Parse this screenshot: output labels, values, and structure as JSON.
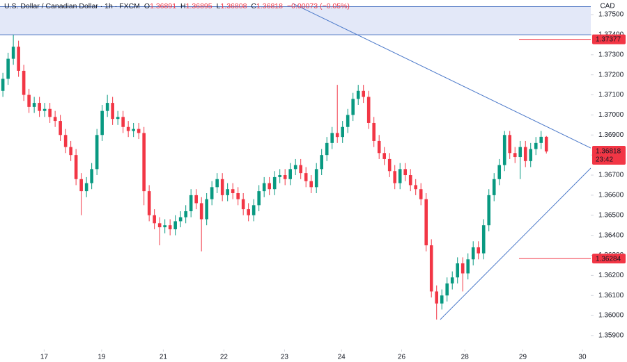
{
  "chart_data": {
    "type": "candlestick",
    "title": "U.S. Dollar / Canadian Dollar · 1h · FXCM",
    "ohlc": [
      {
        "key": "O",
        "value": 1.36891
      },
      {
        "key": "H",
        "value": 1.36895
      },
      {
        "key": "L",
        "value": 1.36808
      },
      {
        "key": "C",
        "value": 1.36818
      }
    ],
    "change": "−0.00073 (−0.05%)",
    "y_label": "CAD",
    "up_color": "#089981",
    "down_color": "#f23645",
    "open": [
      1.3712,
      1.3718,
      1.3728,
      1.3734,
      1.3722,
      1.371,
      1.3704,
      1.3706,
      1.3702,
      1.3703,
      1.3699,
      1.3697,
      1.369,
      1.3684,
      1.368,
      1.3668,
      1.3662,
      1.3666,
      1.3673,
      1.369,
      1.3702,
      1.3706,
      1.3698,
      1.3699,
      1.3694,
      1.3692,
      1.3693,
      1.3691,
      1.3662,
      1.365,
      1.3646,
      1.3644,
      1.3645,
      1.3643,
      1.3647,
      1.3649,
      1.3652,
      1.366,
      1.3656,
      1.3648,
      1.3658,
      1.3664,
      1.3668,
      1.366,
      1.3663,
      1.3661,
      1.3658,
      1.3653,
      1.365,
      1.3655,
      1.3662,
      1.3666,
      1.3663,
      1.3669,
      1.367,
      1.3668,
      1.3673,
      1.3675,
      1.3671,
      1.3667,
      1.3664,
      1.3673,
      1.368,
      1.3686,
      1.3691,
      1.3689,
      1.3694,
      1.37,
      1.3708,
      1.3712,
      1.3709,
      1.3696,
      1.3687,
      1.3681,
      1.3678,
      1.3672,
      1.3666,
      1.3673,
      1.367,
      1.3665,
      1.3663,
      1.3658,
      1.3635,
      1.3612,
      1.3606,
      1.361,
      1.3616,
      1.3619,
      1.3626,
      1.3621,
      1.3628,
      1.3634,
      1.3631,
      1.3645,
      1.366,
      1.3668,
      1.3675,
      1.369,
      1.3681,
      1.3679,
      1.3684,
      1.3677,
      1.3683,
      1.3686,
      1.36891
    ],
    "high": [
      1.3721,
      1.3731,
      1.374,
      1.3737,
      1.3725,
      1.3713,
      1.3709,
      1.3709,
      1.3706,
      1.3706,
      1.3702,
      1.37,
      1.3693,
      1.3687,
      1.3683,
      1.3671,
      1.3669,
      1.3676,
      1.3693,
      1.3705,
      1.371,
      1.3709,
      1.3702,
      1.3702,
      1.3697,
      1.3696,
      1.3696,
      1.3694,
      1.3665,
      1.3653,
      1.3649,
      1.3648,
      1.3648,
      1.365,
      1.3652,
      1.3655,
      1.3663,
      1.3663,
      1.3659,
      1.3661,
      1.3667,
      1.3671,
      1.3671,
      1.3666,
      1.3666,
      1.3664,
      1.3661,
      1.3656,
      1.3658,
      1.3665,
      1.3669,
      1.3669,
      1.3672,
      1.3673,
      1.3673,
      1.3676,
      1.3678,
      1.3678,
      1.3674,
      1.367,
      1.3676,
      1.3683,
      1.3689,
      1.3694,
      1.3715,
      1.3697,
      1.3703,
      1.3711,
      1.3715,
      1.3715,
      1.3712,
      1.3699,
      1.369,
      1.3684,
      1.3681,
      1.3675,
      1.3676,
      1.3676,
      1.3673,
      1.3668,
      1.3666,
      1.3661,
      1.3638,
      1.3615,
      1.3613,
      1.3619,
      1.3622,
      1.3629,
      1.3629,
      1.3631,
      1.3637,
      1.3637,
      1.3648,
      1.3663,
      1.3671,
      1.3678,
      1.3692,
      1.3692,
      1.3684,
      1.3687,
      1.3687,
      1.3686,
      1.3689,
      1.3692,
      1.36895
    ],
    "low": [
      1.3709,
      1.3715,
      1.3725,
      1.3719,
      1.3707,
      1.3701,
      1.3701,
      1.3699,
      1.3699,
      1.3696,
      1.3694,
      1.3687,
      1.3681,
      1.3677,
      1.3665,
      1.365,
      1.3659,
      1.3663,
      1.367,
      1.3687,
      1.3699,
      1.3695,
      1.3695,
      1.3691,
      1.3689,
      1.3689,
      1.3688,
      1.3655,
      1.3647,
      1.3643,
      1.3635,
      1.3641,
      1.364,
      1.364,
      1.3644,
      1.3646,
      1.3649,
      1.3653,
      1.3632,
      1.3645,
      1.3655,
      1.3661,
      1.3657,
      1.3657,
      1.3658,
      1.3655,
      1.365,
      1.3647,
      1.3647,
      1.3652,
      1.3659,
      1.366,
      1.366,
      1.3666,
      1.3665,
      1.3665,
      1.367,
      1.3668,
      1.3664,
      1.3661,
      1.3661,
      1.367,
      1.3677,
      1.3683,
      1.3686,
      1.3686,
      1.3691,
      1.3697,
      1.3705,
      1.3706,
      1.3693,
      1.3684,
      1.3678,
      1.3675,
      1.3669,
      1.3663,
      1.3663,
      1.3667,
      1.3662,
      1.366,
      1.3655,
      1.3632,
      1.3609,
      1.3598,
      1.3603,
      1.3607,
      1.3613,
      1.3616,
      1.3612,
      1.3618,
      1.3625,
      1.3628,
      1.3628,
      1.3642,
      1.3657,
      1.3665,
      1.3672,
      1.3678,
      1.3676,
      1.3668,
      1.3674,
      1.3674,
      1.368,
      1.3683,
      1.36808
    ],
    "close": [
      1.3718,
      1.3728,
      1.3734,
      1.3722,
      1.371,
      1.3704,
      1.3706,
      1.3702,
      1.3703,
      1.3699,
      1.3697,
      1.369,
      1.3684,
      1.368,
      1.3668,
      1.3662,
      1.3666,
      1.3673,
      1.369,
      1.3702,
      1.3706,
      1.3698,
      1.3699,
      1.3694,
      1.3692,
      1.3693,
      1.3691,
      1.3662,
      1.365,
      1.3646,
      1.3644,
      1.3645,
      1.3643,
      1.3647,
      1.3649,
      1.3652,
      1.366,
      1.3656,
      1.3648,
      1.3658,
      1.3664,
      1.3668,
      1.366,
      1.3663,
      1.3661,
      1.3658,
      1.3653,
      1.365,
      1.3655,
      1.3662,
      1.3666,
      1.3663,
      1.3669,
      1.367,
      1.3668,
      1.3673,
      1.3675,
      1.3671,
      1.3667,
      1.3664,
      1.3673,
      1.368,
      1.3686,
      1.3691,
      1.3689,
      1.3694,
      1.37,
      1.3708,
      1.3712,
      1.3709,
      1.3696,
      1.3687,
      1.3681,
      1.3678,
      1.3672,
      1.3666,
      1.3673,
      1.367,
      1.3665,
      1.3663,
      1.3658,
      1.3635,
      1.3612,
      1.3606,
      1.361,
      1.3616,
      1.3619,
      1.3626,
      1.3621,
      1.3628,
      1.3634,
      1.3631,
      1.3645,
      1.366,
      1.3668,
      1.3675,
      1.369,
      1.3681,
      1.3679,
      1.3684,
      1.3677,
      1.3683,
      1.3686,
      1.36891,
      1.36818
    ],
    "xlim": [
      -0.55,
      112.5
    ],
    "xticks": [
      {
        "value": 7.9,
        "label": "17"
      },
      {
        "value": 18.9,
        "label": "19"
      },
      {
        "value": 30.7,
        "label": "21"
      },
      {
        "value": 42.3,
        "label": "22"
      },
      {
        "value": 53.9,
        "label": "23"
      },
      {
        "value": 64.8,
        "label": "24"
      },
      {
        "value": 76.3,
        "label": "26"
      },
      {
        "value": 88.4,
        "label": "28"
      },
      {
        "value": 99.5,
        "label": "29"
      },
      {
        "value": 110.9,
        "label": "30"
      }
    ],
    "ylim": [
      1.35841,
      1.37573
    ],
    "yticks": [
      {
        "value": 1.359,
        "label": "1.35900"
      },
      {
        "value": 1.36,
        "label": "1.36000"
      },
      {
        "value": 1.361,
        "label": "1.36100"
      },
      {
        "value": 1.362,
        "label": "1.36200"
      },
      {
        "value": 1.363,
        "label": "1.36300"
      },
      {
        "value": 1.364,
        "label": "1.36400"
      },
      {
        "value": 1.365,
        "label": "1.36500"
      },
      {
        "value": 1.366,
        "label": "1.36600"
      },
      {
        "value": 1.367,
        "label": "1.36700"
      },
      {
        "value": 1.368,
        "label": "1.36800"
      },
      {
        "value": 1.369,
        "label": "1.36900"
      },
      {
        "value": 1.37,
        "label": "1.37000"
      },
      {
        "value": 1.371,
        "label": "1.37100"
      },
      {
        "value": 1.372,
        "label": "1.37200"
      },
      {
        "value": 1.373,
        "label": "1.37300"
      },
      {
        "value": 1.374,
        "label": "1.37400"
      },
      {
        "value": 1.375,
        "label": "1.37500"
      }
    ],
    "zone": [
      1.374,
      1.3754
    ],
    "trendlines": [
      {
        "x": [
          55.45,
          112.5
        ],
        "y": [
          1.37556,
          1.36835
        ]
      },
      {
        "x": [
          83.7,
          112.5
        ],
        "y": [
          1.3598,
          1.36735
        ]
      }
    ],
    "price_markers": [
      1.37377,
      1.36284
    ],
    "last_price": 1.36818,
    "countdown": "23:42"
  }
}
